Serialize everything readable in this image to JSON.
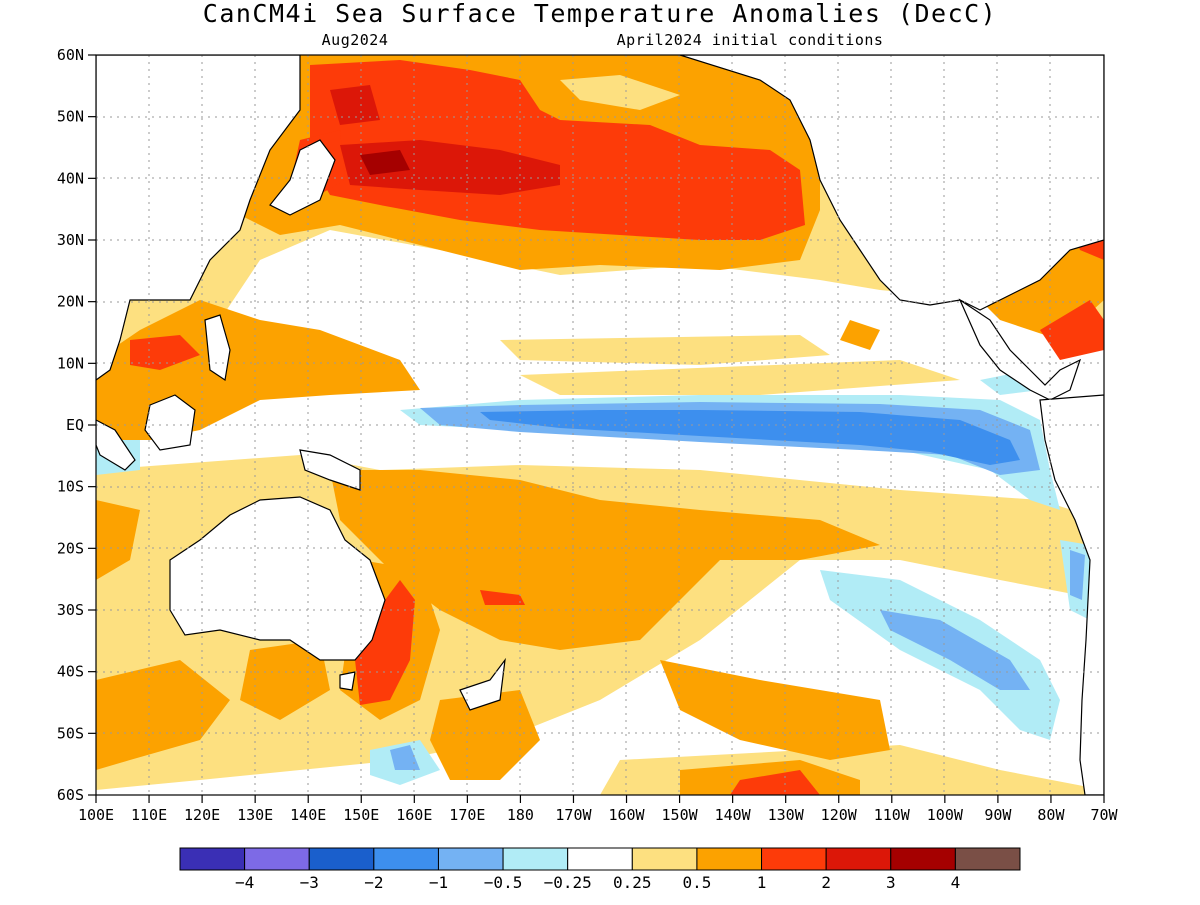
{
  "title": "CanCM4i Sea Surface Temperature Anomalies (DecC)",
  "subtitle_left": "Aug2024",
  "subtitle_right": "April2024 initial conditions",
  "lat_labels": [
    "60N",
    "50N",
    "40N",
    "30N",
    "20N",
    "10N",
    "EQ",
    "10S",
    "20S",
    "30S",
    "40S",
    "50S",
    "60S"
  ],
  "lon_labels": [
    "100E",
    "110E",
    "120E",
    "130E",
    "140E",
    "150E",
    "160E",
    "170E",
    "180",
    "170W",
    "160W",
    "150W",
    "140W",
    "130W",
    "120W",
    "110W",
    "100W",
    "90W",
    "80W",
    "70W"
  ],
  "colorbar": {
    "colors": [
      "#3a2fb5",
      "#7d6ae6",
      "#1a5fcc",
      "#3d8fee",
      "#74b2f3",
      "#b1ecf6",
      "#ffffff",
      "#fde080",
      "#fca200",
      "#fd3b09",
      "#dc1708",
      "#a50000",
      "#7a4f46"
    ],
    "labels": [
      "−4",
      "−3",
      "−2",
      "−1",
      "−0.5",
      "−0.25",
      "0.25",
      "0.5",
      "1",
      "2",
      "3",
      "4"
    ]
  },
  "map": {
    "lon_range": [
      100,
      290
    ],
    "lat_range": [
      -60,
      60
    ],
    "grid": "dotted"
  }
}
